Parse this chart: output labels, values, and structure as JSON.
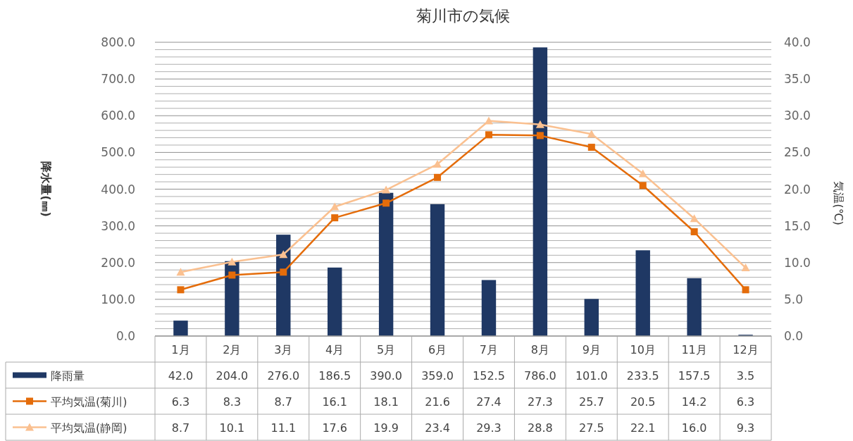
{
  "chart_data": {
    "type": "bar",
    "title": "菊川市の気候",
    "ylabel": "降水量(㎜)",
    "y2label": "気温(℃)",
    "categories": [
      "1月",
      "2月",
      "3月",
      "4月",
      "5月",
      "6月",
      "7月",
      "8月",
      "9月",
      "10月",
      "11月",
      "12月"
    ],
    "series": [
      {
        "name": "降雨量",
        "color": "#1f3864",
        "values": [
          42.0,
          204.0,
          276.0,
          186.5,
          390.0,
          359.0,
          152.5,
          786.0,
          101.0,
          233.5,
          157.5,
          3.5
        ],
        "value_labels": [
          "42.0",
          "204.0",
          "276.0",
          "186.5",
          "390.0",
          "359.0",
          "152.5",
          "786.0",
          "101.0",
          "233.5",
          "157.5",
          "3.5"
        ]
      },
      {
        "name": "平均気温(菊川)",
        "type": "line",
        "axis": "y2",
        "marker": "square",
        "color": "#e46c0a",
        "values": [
          6.3,
          8.3,
          8.7,
          16.1,
          18.1,
          21.6,
          27.4,
          27.3,
          25.7,
          20.5,
          14.2,
          6.3
        ],
        "value_labels": [
          "6.3",
          "8.3",
          "8.7",
          "16.1",
          "18.1",
          "21.6",
          "27.4",
          "27.3",
          "25.7",
          "20.5",
          "14.2",
          "6.3"
        ]
      },
      {
        "name": "平均気温(静岡)",
        "type": "line",
        "axis": "y2",
        "marker": "triangle",
        "color": "#fac090",
        "values": [
          8.7,
          10.1,
          11.1,
          17.6,
          19.9,
          23.4,
          29.3,
          28.8,
          27.5,
          22.1,
          16.0,
          9.3
        ],
        "value_labels": [
          "8.7",
          "10.1",
          "11.1",
          "17.6",
          "19.9",
          "23.4",
          "29.3",
          "28.8",
          "27.5",
          "22.1",
          "16.0",
          "9.3"
        ]
      }
    ],
    "ylim": [
      0,
      800
    ],
    "yticks": [
      {
        "value": 0,
        "label": "0.0"
      },
      {
        "value": 20,
        "label": null
      },
      {
        "value": 40,
        "label": null
      },
      {
        "value": 60,
        "label": null
      },
      {
        "value": 80,
        "label": null
      },
      {
        "value": 100,
        "label": "100.0"
      },
      {
        "value": 120,
        "label": null
      },
      {
        "value": 140,
        "label": null
      },
      {
        "value": 160,
        "label": null
      },
      {
        "value": 180,
        "label": null
      },
      {
        "value": 200,
        "label": "200.0"
      },
      {
        "value": 220,
        "label": null
      },
      {
        "value": 240,
        "label": null
      },
      {
        "value": 260,
        "label": null
      },
      {
        "value": 280,
        "label": null
      },
      {
        "value": 300,
        "label": "300.0"
      },
      {
        "value": 320,
        "label": null
      },
      {
        "value": 340,
        "label": null
      },
      {
        "value": 360,
        "label": null
      },
      {
        "value": 380,
        "label": null
      },
      {
        "value": 400,
        "label": "400.0"
      },
      {
        "value": 420,
        "label": null
      },
      {
        "value": 440,
        "label": null
      },
      {
        "value": 460,
        "label": null
      },
      {
        "value": 480,
        "label": null
      },
      {
        "value": 500,
        "label": "500.0"
      },
      {
        "value": 520,
        "label": null
      },
      {
        "value": 540,
        "label": null
      },
      {
        "value": 560,
        "label": null
      },
      {
        "value": 580,
        "label": null
      },
      {
        "value": 600,
        "label": "600.0"
      },
      {
        "value": 620,
        "label": null
      },
      {
        "value": 640,
        "label": null
      },
      {
        "value": 660,
        "label": null
      },
      {
        "value": 680,
        "label": null
      },
      {
        "value": 700,
        "label": "700.0"
      },
      {
        "value": 720,
        "label": null
      },
      {
        "value": 740,
        "label": null
      },
      {
        "value": 760,
        "label": null
      },
      {
        "value": 780,
        "label": null
      },
      {
        "value": 800,
        "label": "800.0"
      }
    ],
    "y2lim": [
      0,
      40
    ],
    "y2ticks": [
      {
        "value": 0,
        "label": "0.0"
      },
      {
        "value": 5,
        "label": "5.0"
      },
      {
        "value": 10,
        "label": "10.0"
      },
      {
        "value": 15,
        "label": "15.0"
      },
      {
        "value": 20,
        "label": "20.0"
      },
      {
        "value": 25,
        "label": "25.0"
      },
      {
        "value": 30,
        "label": "30.0"
      },
      {
        "value": 35,
        "label": "35.0"
      },
      {
        "value": 40,
        "label": "40.0"
      }
    ],
    "grid": "y",
    "legend": "bottom",
    "line_style": "solid"
  }
}
